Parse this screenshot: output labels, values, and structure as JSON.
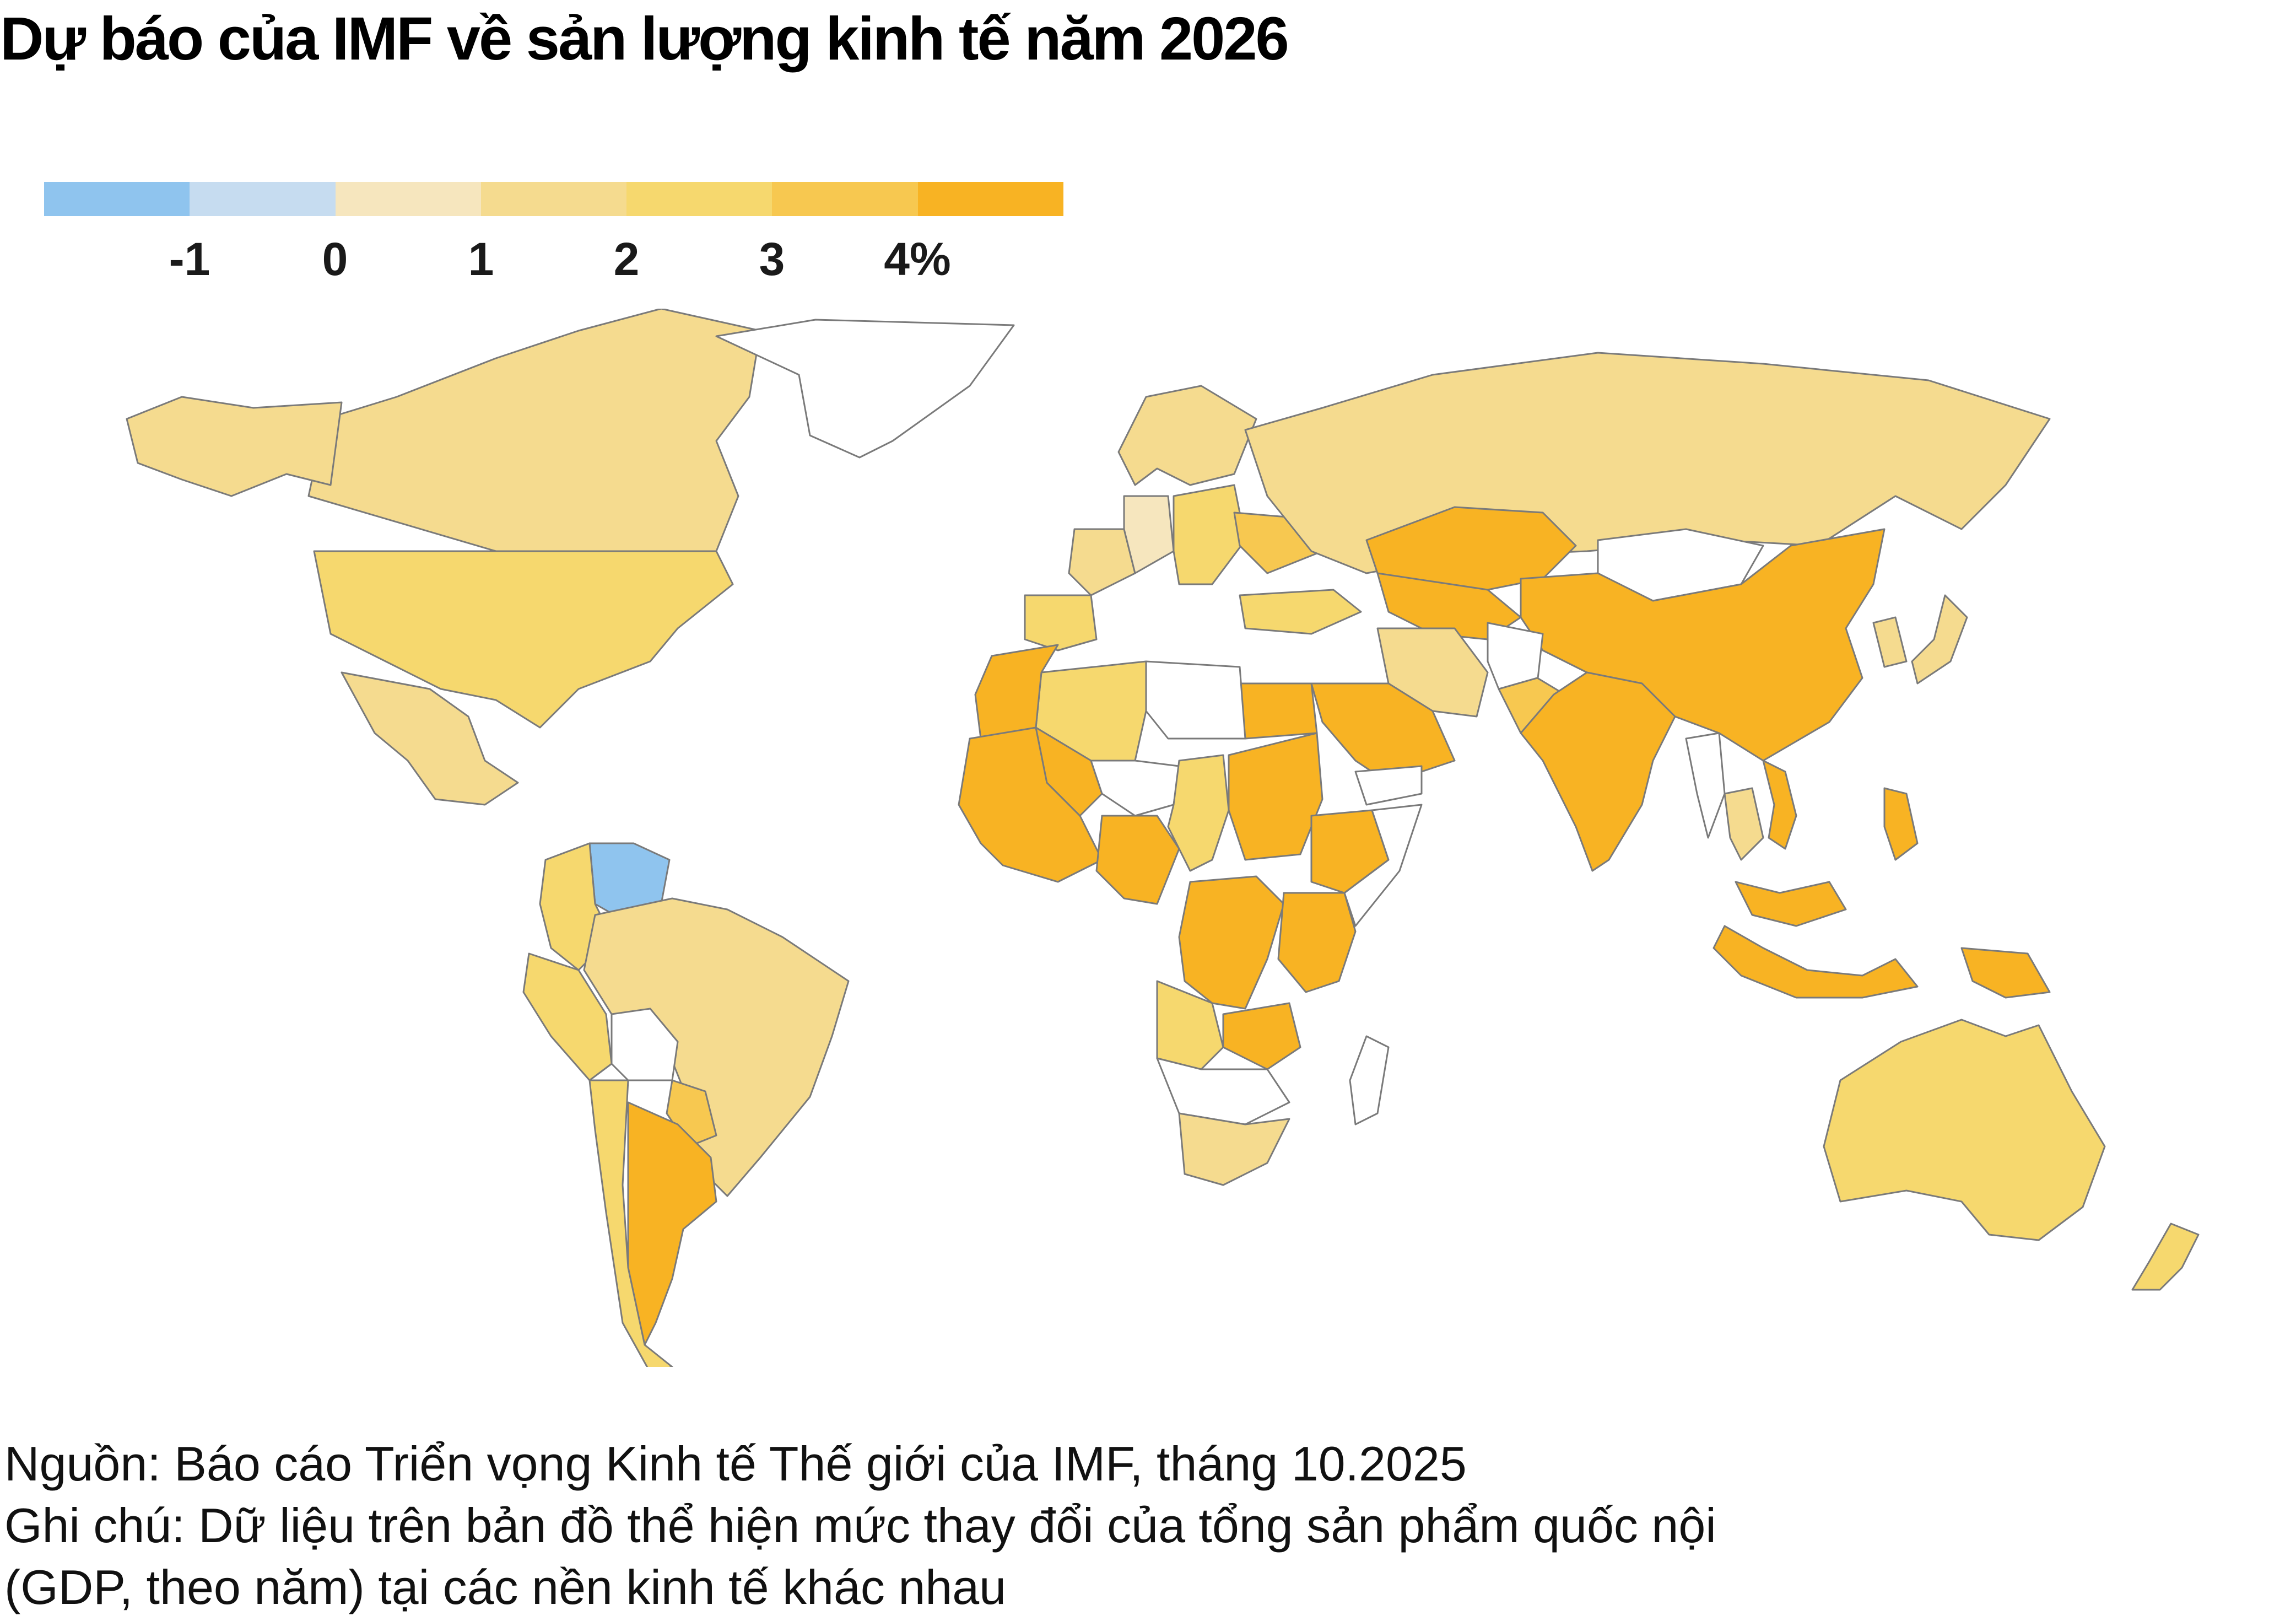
{
  "title": "Dự báo của IMF về sản lượng kinh tế năm 2026",
  "legend": {
    "unit": "%",
    "colors": [
      "#8fc4ee",
      "#c6dcf0",
      "#f6e6be",
      "#f5db8f",
      "#f6d86e",
      "#f7c850",
      "#f8b323"
    ],
    "ticks": [
      "-1",
      "0",
      "1",
      "2",
      "3",
      "4%"
    ]
  },
  "map": {
    "no_data_color": "#ffffff",
    "border_color": "#7a7a7a",
    "regions": [
      {
        "name": "Canada",
        "bin": 3
      },
      {
        "name": "Alaska (United States)",
        "bin": 3
      },
      {
        "name": "United States",
        "bin": 4
      },
      {
        "name": "Mexico",
        "bin": 3
      },
      {
        "name": "Greenland",
        "bin": null
      },
      {
        "name": "Venezuela",
        "bin": 0
      },
      {
        "name": "Colombia",
        "bin": 4
      },
      {
        "name": "Peru",
        "bin": 4
      },
      {
        "name": "Brazil",
        "bin": 3
      },
      {
        "name": "Bolivia",
        "bin": null
      },
      {
        "name": "Paraguay",
        "bin": 5
      },
      {
        "name": "Argentina",
        "bin": 6
      },
      {
        "name": "Chile",
        "bin": 4
      },
      {
        "name": "Spain",
        "bin": 4
      },
      {
        "name": "France",
        "bin": 3
      },
      {
        "name": "Germany",
        "bin": 2
      },
      {
        "name": "Scandinavia",
        "bin": 3
      },
      {
        "name": "Eastern Europe",
        "bin": 4
      },
      {
        "name": "Ukraine",
        "bin": 5
      },
      {
        "name": "Turkey",
        "bin": 4
      },
      {
        "name": "Russia",
        "bin": 3
      },
      {
        "name": "Kazakhstan",
        "bin": 6
      },
      {
        "name": "Central Asia",
        "bin": 6
      },
      {
        "name": "Mongolia",
        "bin": null
      },
      {
        "name": "China",
        "bin": 6
      },
      {
        "name": "Japan",
        "bin": 3
      },
      {
        "name": "Korea",
        "bin": 3
      },
      {
        "name": "Iran",
        "bin": 3
      },
      {
        "name": "Afghanistan",
        "bin": null
      },
      {
        "name": "Pakistan",
        "bin": 5
      },
      {
        "name": "India",
        "bin": 6
      },
      {
        "name": "Saudi Arabia",
        "bin": 6
      },
      {
        "name": "Yemen",
        "bin": null
      },
      {
        "name": "Egypt",
        "bin": 6
      },
      {
        "name": "Libya",
        "bin": null
      },
      {
        "name": "Algeria",
        "bin": 4
      },
      {
        "name": "Morocco",
        "bin": 6
      },
      {
        "name": "West Africa",
        "bin": 6
      },
      {
        "name": "Mali",
        "bin": 6
      },
      {
        "name": "Niger",
        "bin": null
      },
      {
        "name": "Chad",
        "bin": 4
      },
      {
        "name": "Sudan",
        "bin": 6
      },
      {
        "name": "Ethiopia",
        "bin": 6
      },
      {
        "name": "Somalia",
        "bin": null
      },
      {
        "name": "Nigeria",
        "bin": 6
      },
      {
        "name": "DR Congo",
        "bin": 6
      },
      {
        "name": "East Africa",
        "bin": 6
      },
      {
        "name": "Angola",
        "bin": 4
      },
      {
        "name": "Zambia",
        "bin": 6
      },
      {
        "name": "Southern Africa",
        "bin": null
      },
      {
        "name": "South Africa",
        "bin": 3
      },
      {
        "name": "Madagascar",
        "bin": null
      },
      {
        "name": "Myanmar",
        "bin": null
      },
      {
        "name": "Thailand",
        "bin": 3
      },
      {
        "name": "Vietnam",
        "bin": 6
      },
      {
        "name": "Philippines",
        "bin": 6
      },
      {
        "name": "Malaysia",
        "bin": 6
      },
      {
        "name": "Indonesia",
        "bin": 6
      },
      {
        "name": "Papua New Guinea",
        "bin": 6
      },
      {
        "name": "Australia",
        "bin": 4
      },
      {
        "name": "New Zealand",
        "bin": 4
      }
    ]
  },
  "footnote": {
    "source": "Nguồn: Báo cáo Triển vọng Kinh tế Thế giới của IMF, tháng 10.2025",
    "note_line1": "Ghi chú: Dữ liệu trên bản đồ thể hiện mức thay đổi của tổng sản phẩm quốc nội",
    "note_line2": "(GDP, theo năm) tại các nền kinh tế khác nhau"
  }
}
